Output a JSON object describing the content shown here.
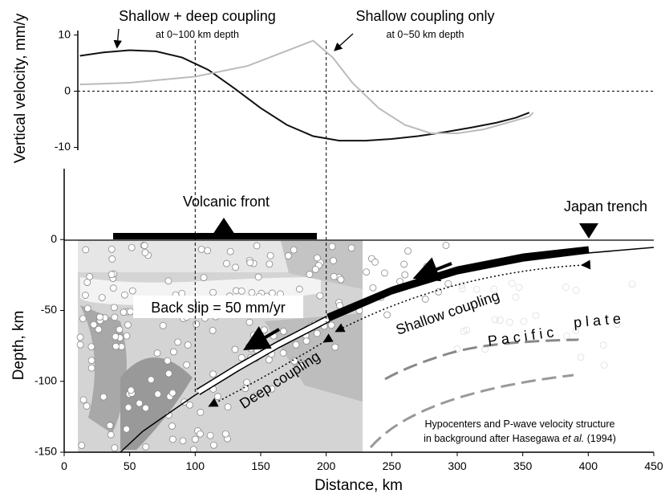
{
  "chart_data": [
    {
      "type": "line",
      "ylabel": "Vertical velocity, mm/y",
      "xlim": [
        0,
        450
      ],
      "ylim": [
        -10.5,
        10.8
      ],
      "yticks": [
        10,
        0,
        -10
      ],
      "zero_line": true,
      "vlines": [
        100,
        200
      ],
      "series": [
        {
          "name": "Shallow + deep coupling",
          "depth": "at 0~100 km depth",
          "color": "#111111",
          "x": [
            12,
            30,
            50,
            70,
            90,
            110,
            130,
            150,
            170,
            190,
            210,
            230,
            250,
            270,
            290,
            310,
            330,
            345,
            355
          ],
          "values": [
            6.3,
            6.9,
            7.3,
            7.1,
            6,
            3.8,
            0.5,
            -3,
            -6,
            -8,
            -8.8,
            -8.8,
            -8.5,
            -8,
            -7.3,
            -6.5,
            -5.6,
            -4.7,
            -3.8
          ]
        },
        {
          "name": "Shallow coupling only",
          "depth": "at 0~50 km depth",
          "color": "#bbbbbb",
          "x": [
            12,
            50,
            100,
            140,
            170,
            190,
            205,
            220,
            240,
            260,
            280,
            300,
            320,
            340,
            355,
            358
          ],
          "values": [
            1.2,
            1.5,
            2.6,
            4.5,
            7.2,
            9,
            6,
            1.5,
            -3,
            -6,
            -7.5,
            -7.5,
            -6.8,
            -5.5,
            -4.5,
            -3.8
          ]
        }
      ]
    },
    {
      "type": "section",
      "xlabel": "Distance, km",
      "ylabel": "Depth, km",
      "xlim": [
        0,
        450
      ],
      "ylim": [
        -150,
        50
      ],
      "xticks": [
        0,
        50,
        100,
        150,
        200,
        250,
        300,
        350,
        400,
        450
      ],
      "yticks": [
        0,
        -50,
        -100,
        -150
      ],
      "annotations": {
        "volcanic_front": "Volcanic front",
        "japan_trench": "Japan trench",
        "back_slip": "Back slip = 50 mm/yr",
        "shallow": "Shallow coupling",
        "deep": "Deep coupling",
        "pacific": "P a c i f i c",
        "plate": "p l a t e",
        "credit_1": "Hypocenters and P-wave velocity structure",
        "credit_2a": "in background after Hasegawa ",
        "credit_2b": "et al.",
        "credit_2c": " (1994)"
      }
    }
  ]
}
